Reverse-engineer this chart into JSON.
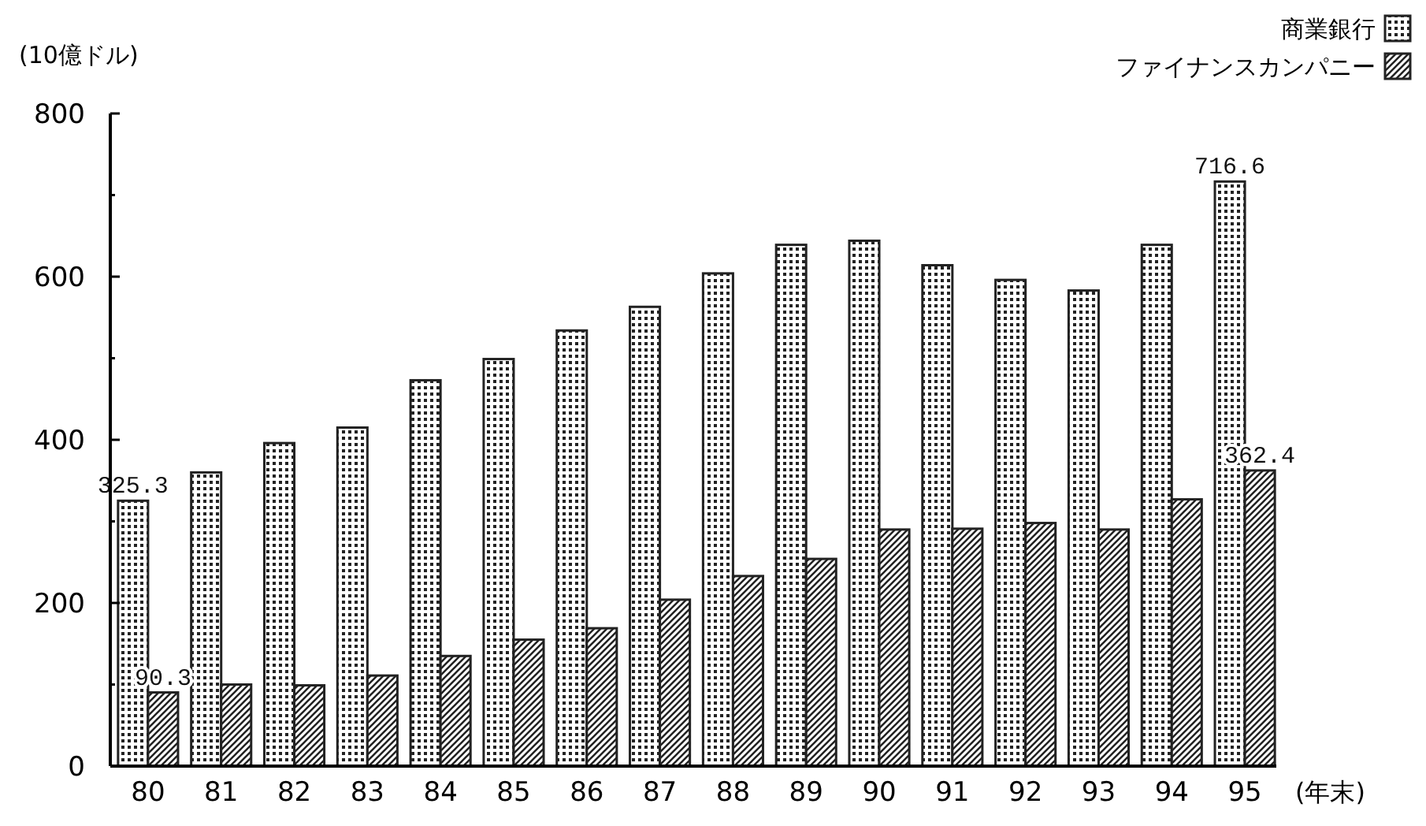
{
  "chart_data": {
    "type": "bar",
    "ylabel": "(10億ドル)",
    "xlabel": "(年末)",
    "categories": [
      "80",
      "81",
      "82",
      "83",
      "84",
      "85",
      "86",
      "87",
      "88",
      "89",
      "90",
      "91",
      "92",
      "93",
      "94",
      "95"
    ],
    "series": [
      {
        "name": "商業銀行",
        "color": "#222222",
        "values": [
          325.3,
          360,
          396,
          415,
          473,
          499,
          534,
          563,
          604,
          639,
          644,
          614,
          596,
          583,
          639,
          716.6
        ],
        "value_labels": [
          "325.3",
          null,
          null,
          null,
          null,
          null,
          null,
          null,
          null,
          null,
          null,
          null,
          null,
          null,
          null,
          "716.6"
        ]
      },
      {
        "name": "ファイナンスカンパニー",
        "color": "#222222",
        "values": [
          90.3,
          100,
          99,
          111,
          135,
          155,
          169,
          204,
          233,
          254,
          290,
          291,
          298,
          290,
          327,
          362.4
        ],
        "value_labels": [
          "90.3",
          null,
          null,
          null,
          null,
          null,
          null,
          null,
          null,
          null,
          null,
          null,
          null,
          null,
          null,
          "362.4"
        ]
      }
    ],
    "ylim": [
      0,
      800
    ],
    "yticks": [
      0,
      {
        "value": 100,
        "label": null
      },
      200,
      {
        "value": 300,
        "label": null
      },
      400,
      {
        "value": 500,
        "label": null
      },
      600,
      {
        "value": 700,
        "label": null
      },
      800
    ],
    "grid": false,
    "legend": "top right"
  }
}
